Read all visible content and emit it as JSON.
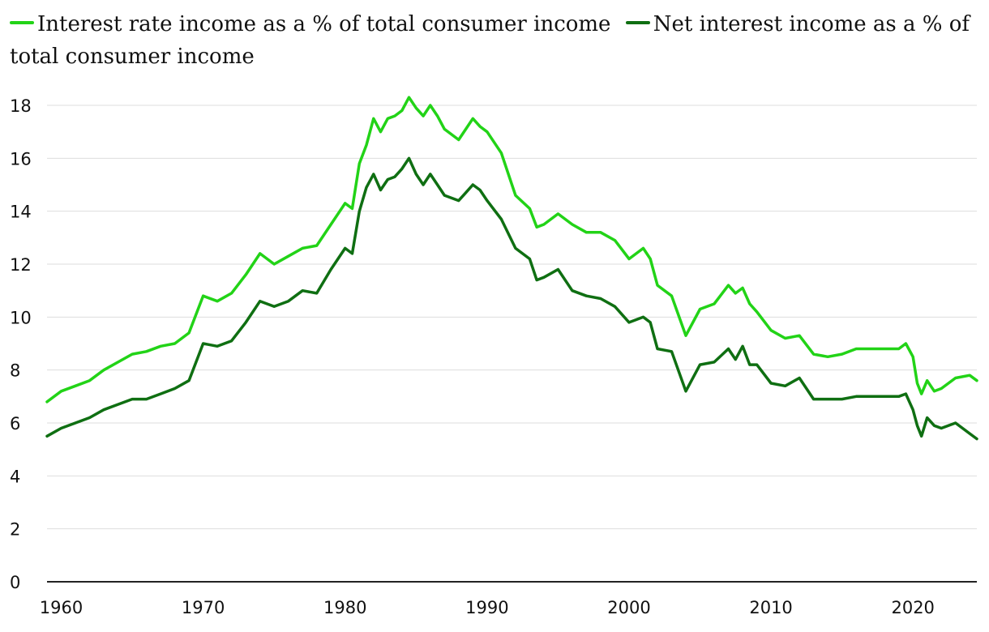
{
  "chart_data": {
    "type": "line",
    "title": "",
    "xlabel": "",
    "ylabel": "",
    "xlim": [
      1959,
      2024.5
    ],
    "ylim": [
      0,
      18
    ],
    "xticks": [
      1960,
      1970,
      1980,
      1990,
      2000,
      2010,
      2020
    ],
    "yticks": [
      0,
      2,
      4,
      6,
      8,
      10,
      12,
      14,
      16,
      18
    ],
    "grid": "horizontal",
    "legend_position": "top",
    "series": [
      {
        "name": "Interest rate income as a % of total consumer income",
        "color": "#22d317",
        "x": [
          1959,
          1960,
          1961,
          1962,
          1963,
          1964,
          1965,
          1966,
          1967,
          1968,
          1969,
          1970,
          1971,
          1972,
          1973,
          1974,
          1975,
          1976,
          1977,
          1978,
          1979,
          1980,
          1980.5,
          1981,
          1981.5,
          1982,
          1982.5,
          1983,
          1983.5,
          1984,
          1984.5,
          1985,
          1985.5,
          1986,
          1986.5,
          1987,
          1988,
          1988.5,
          1989,
          1989.5,
          1990,
          1991,
          1992,
          1993,
          1993.5,
          1994,
          1995,
          1996,
          1997,
          1998,
          1999,
          2000,
          2001,
          2001.5,
          2002,
          2003,
          2004,
          2005,
          2006,
          2007,
          2007.5,
          2008,
          2008.5,
          2009,
          2010,
          2011,
          2012,
          2013,
          2014,
          2015,
          2016,
          2017,
          2018,
          2019,
          2019.5,
          2020,
          2020.3,
          2020.6,
          2021,
          2021.5,
          2022,
          2023,
          2024,
          2024.5
        ],
        "values": [
          6.8,
          7.2,
          7.4,
          7.6,
          8.0,
          8.3,
          8.6,
          8.7,
          8.9,
          9.0,
          9.4,
          10.8,
          10.6,
          10.9,
          11.6,
          12.4,
          12.0,
          12.3,
          12.6,
          12.7,
          13.5,
          14.3,
          14.1,
          15.8,
          16.5,
          17.5,
          17.0,
          17.5,
          17.6,
          17.8,
          18.3,
          17.9,
          17.6,
          18.0,
          17.6,
          17.1,
          16.7,
          17.1,
          17.5,
          17.2,
          17.0,
          16.2,
          14.6,
          14.1,
          13.4,
          13.5,
          13.9,
          13.5,
          13.2,
          13.2,
          12.9,
          12.2,
          12.6,
          12.2,
          11.2,
          10.8,
          9.3,
          10.3,
          10.5,
          11.2,
          10.9,
          11.1,
          10.5,
          10.2,
          9.5,
          9.2,
          9.3,
          8.6,
          8.5,
          8.6,
          8.8,
          8.8,
          8.8,
          8.8,
          9.0,
          8.5,
          7.5,
          7.1,
          7.6,
          7.2,
          7.3,
          7.7,
          7.8,
          7.6
        ]
      },
      {
        "name": "Net interest income as a % of total consumer income",
        "color": "#0f6f12",
        "x": [
          1959,
          1960,
          1961,
          1962,
          1963,
          1964,
          1965,
          1966,
          1967,
          1968,
          1969,
          1970,
          1971,
          1972,
          1973,
          1974,
          1975,
          1976,
          1977,
          1978,
          1979,
          1980,
          1980.5,
          1981,
          1981.5,
          1982,
          1982.5,
          1983,
          1983.5,
          1984,
          1984.5,
          1985,
          1985.5,
          1986,
          1986.5,
          1987,
          1988,
          1988.5,
          1989,
          1989.5,
          1990,
          1991,
          1992,
          1993,
          1993.5,
          1994,
          1995,
          1996,
          1997,
          1998,
          1999,
          2000,
          2001,
          2001.5,
          2002,
          2003,
          2004,
          2005,
          2006,
          2007,
          2007.5,
          2008,
          2008.5,
          2009,
          2010,
          2011,
          2012,
          2013,
          2014,
          2015,
          2016,
          2017,
          2018,
          2019,
          2019.5,
          2020,
          2020.3,
          2020.6,
          2021,
          2021.5,
          2022,
          2023,
          2024,
          2024.5
        ],
        "values": [
          5.5,
          5.8,
          6.0,
          6.2,
          6.5,
          6.7,
          6.9,
          6.9,
          7.1,
          7.3,
          7.6,
          9.0,
          8.9,
          9.1,
          9.8,
          10.6,
          10.4,
          10.6,
          11.0,
          10.9,
          11.8,
          12.6,
          12.4,
          14.0,
          14.9,
          15.4,
          14.8,
          15.2,
          15.3,
          15.6,
          16.0,
          15.4,
          15.0,
          15.4,
          15.0,
          14.6,
          14.4,
          14.7,
          15.0,
          14.8,
          14.4,
          13.7,
          12.6,
          12.2,
          11.4,
          11.5,
          11.8,
          11.0,
          10.8,
          10.7,
          10.4,
          9.8,
          10.0,
          9.8,
          8.8,
          8.7,
          7.2,
          8.2,
          8.3,
          8.8,
          8.4,
          8.9,
          8.2,
          8.2,
          7.5,
          7.4,
          7.7,
          6.9,
          6.9,
          6.9,
          7.0,
          7.0,
          7.0,
          7.0,
          7.1,
          6.5,
          5.9,
          5.5,
          6.2,
          5.9,
          5.8,
          6.0,
          5.6,
          5.4
        ]
      }
    ]
  }
}
